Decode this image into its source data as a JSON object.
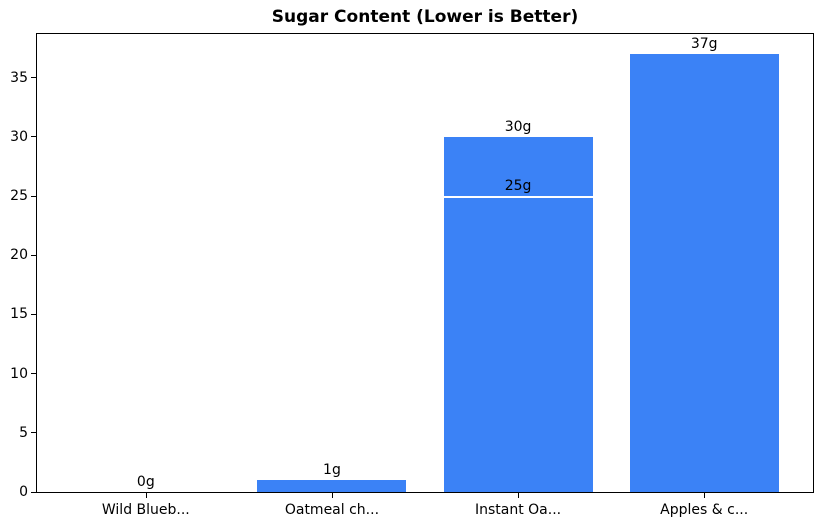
{
  "chart_data": {
    "type": "bar",
    "title": "Sugar Content (Lower is Better)",
    "xlabel": "",
    "ylabel": "",
    "grid": false,
    "legend": null,
    "bar_color": "#3b82f6",
    "divider_color": "#ffffff",
    "frame_color": "#000000",
    "categories": [
      "Wild Blueb...",
      "Oatmeal ch...",
      "Instant Oa...",
      "Apples & c..."
    ],
    "bars": [
      {
        "category": "Wild Blueb...",
        "segments": [
          {
            "value": 0,
            "label": "0g"
          }
        ]
      },
      {
        "category": "Oatmeal ch...",
        "segments": [
          {
            "value": 1,
            "label": "1g"
          }
        ]
      },
      {
        "category": "Instant Oa...",
        "segments": [
          {
            "value": 30,
            "label": "30g"
          },
          {
            "value": 25,
            "label": "25g"
          }
        ]
      },
      {
        "category": "Apples & c...",
        "segments": [
          {
            "value": 37,
            "label": "37g"
          }
        ]
      }
    ],
    "yticks": [
      0,
      5,
      10,
      15,
      20,
      25,
      30,
      35
    ],
    "ylim": [
      0,
      38.7
    ],
    "xlim": [
      -0.59,
      3.59
    ],
    "bar_width": 0.8
  }
}
